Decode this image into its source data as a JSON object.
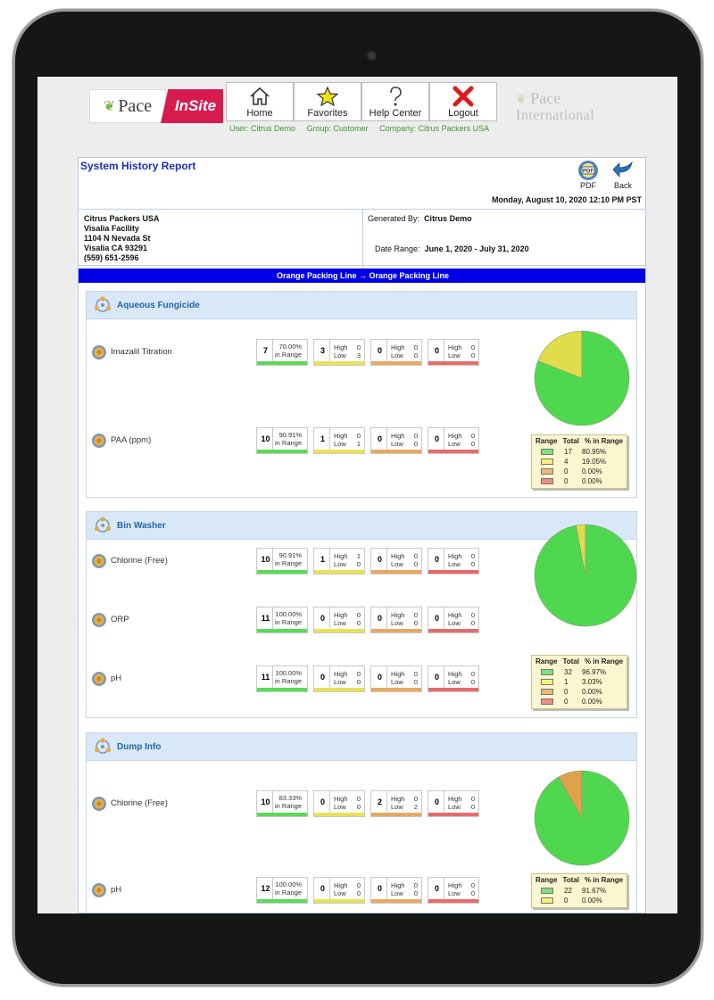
{
  "header": {
    "logo_left_text": "Pace",
    "logo_insite_text": "InSite",
    "nav": [
      {
        "label": "Home",
        "icon": "home-icon"
      },
      {
        "label": "Favorites",
        "icon": "star-icon"
      },
      {
        "label": "Help Center",
        "icon": "question-icon"
      },
      {
        "label": "Logout",
        "icon": "close-icon"
      }
    ],
    "user": "User: Citrus Demo",
    "group": "Group: Customer",
    "company": "Company: Citrus Packers USA",
    "logo_right_line1": "Pace",
    "logo_right_line2": "International"
  },
  "report": {
    "title": "System History Report",
    "pdf_label": "PDF",
    "back_label": "Back",
    "datetime": "Monday, August 10, 2020  12:10 PM PST",
    "address": [
      "Citrus Packers USA",
      "Visalia Facility",
      "1104 N Nevada St",
      "Visalia CA  93291",
      "(559) 651-2596"
    ],
    "generated_by_label": "Generated By:",
    "generated_by": "Citrus Demo",
    "date_range_label": "Date Range:",
    "date_range": "June 1, 2020 - July 31, 2020",
    "line": "Orange Packing Line → Orange Packing Line"
  },
  "colors": {
    "green": "#55dd55",
    "yellow": "#e8e255",
    "orange": "#e8a860",
    "red": "#e86a6a",
    "blue_bar": "#0000e6"
  },
  "sections": [
    {
      "title": "Aqueous Fungicide",
      "rows": [
        {
          "label": "Imazalil Titration",
          "in_range": "7",
          "pct": "70.00%",
          "pct_sub": "in Range",
          "y_high": "0",
          "y_low": "3",
          "y_total": "3",
          "o_high": "0",
          "o_low": "0",
          "o_total": "0",
          "r_high": "0",
          "r_low": "0",
          "r_total": "0"
        },
        {
          "label": "PAA (ppm)",
          "in_range": "10",
          "pct": "90.91%",
          "pct_sub": "in Range",
          "y_high": "0",
          "y_low": "1",
          "y_total": "1",
          "o_high": "0",
          "o_low": "0",
          "o_total": "0",
          "r_high": "0",
          "r_low": "0",
          "r_total": "0"
        }
      ],
      "legend": {
        "headers": [
          "Range",
          "Total",
          "% in Range"
        ],
        "totals": [
          "17",
          "4",
          "0",
          "0"
        ],
        "percents": [
          "80.95%",
          "19.05%",
          "0.00%",
          "0.00%"
        ]
      },
      "pie": {
        "green_fraction": 0.8095,
        "yellow_fraction": 0.1905
      }
    },
    {
      "title": "Bin Washer",
      "rows": [
        {
          "label": "Chlorine (Free)",
          "in_range": "10",
          "pct": "90.91%",
          "pct_sub": "in Range",
          "y_high": "1",
          "y_low": "0",
          "y_total": "1",
          "o_high": "0",
          "o_low": "0",
          "o_total": "0",
          "r_high": "0",
          "r_low": "0",
          "r_total": "0"
        },
        {
          "label": "ORP",
          "in_range": "11",
          "pct": "100.00%",
          "pct_sub": "in Range",
          "y_high": "0",
          "y_low": "0",
          "y_total": "0",
          "o_high": "0",
          "o_low": "0",
          "o_total": "0",
          "r_high": "0",
          "r_low": "0",
          "r_total": "0"
        },
        {
          "label": "pH",
          "in_range": "11",
          "pct": "100.00%",
          "pct_sub": "in Range",
          "y_high": "0",
          "y_low": "0",
          "y_total": "0",
          "o_high": "0",
          "o_low": "0",
          "o_total": "0",
          "r_high": "0",
          "r_low": "0",
          "r_total": "0"
        }
      ],
      "legend": {
        "headers": [
          "Range",
          "Total",
          "% in Range"
        ],
        "totals": [
          "32",
          "1",
          "0",
          "0"
        ],
        "percents": [
          "96.97%",
          "3.03%",
          "0.00%",
          "0.00%"
        ]
      },
      "pie": {
        "green_fraction": 0.9697,
        "yellow_fraction": 0.0303
      }
    },
    {
      "title": "Dump Info",
      "rows": [
        {
          "label": "Chlorine (Free)",
          "in_range": "10",
          "pct": "83.33%",
          "pct_sub": "in Range",
          "y_high": "0",
          "y_low": "0",
          "y_total": "0",
          "o_high": "0",
          "o_low": "2",
          "o_total": "2",
          "r_high": "0",
          "r_low": "0",
          "r_total": "0"
        },
        {
          "label": "pH",
          "in_range": "12",
          "pct": "100.00%",
          "pct_sub": "in Range",
          "y_high": "0",
          "y_low": "0",
          "y_total": "0",
          "o_high": "0",
          "o_low": "0",
          "o_total": "0",
          "r_high": "0",
          "r_low": "0",
          "r_total": "0"
        }
      ],
      "legend": {
        "headers": [
          "Range",
          "Total",
          "% in Range"
        ],
        "totals": [
          "22",
          "0"
        ],
        "percents": [
          "91.67%",
          "0.00%"
        ]
      },
      "pie": {
        "green_fraction": 0.9167,
        "orange_fraction": 0.0833
      }
    }
  ]
}
